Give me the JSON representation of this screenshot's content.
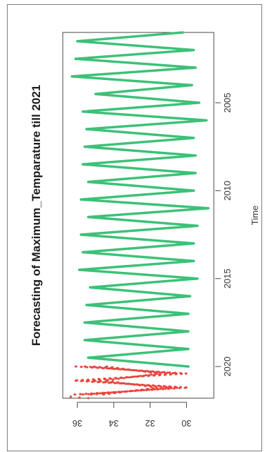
{
  "chart_data": {
    "type": "line",
    "title": "Forecasting of Maximum_Temparature till 2021",
    "xlabel": "Time",
    "ylabel": "",
    "x_ticks": [
      "2005",
      "2010",
      "2015",
      "2020"
    ],
    "y_ticks": [
      "30",
      "32",
      "34",
      "36"
    ],
    "xlim": [
      2001,
      2021.8
    ],
    "ylim": [
      28.5,
      36.8
    ],
    "colors": {
      "actual": "#3cc177",
      "forecast": "#e8453c"
    },
    "series": [
      {
        "style": "solid",
        "x": [
          2001.0,
          2001.5,
          2002.0,
          2002.5,
          2003.0,
          2003.5,
          2004.0,
          2004.5,
          2005.0,
          2005.5,
          2006.0,
          2006.5,
          2007.0,
          2007.5,
          2008.0,
          2008.5,
          2009.0,
          2009.5,
          2010.0,
          2010.5,
          2011.0,
          2011.5,
          2012.0,
          2012.5,
          2013.0,
          2013.5,
          2014.0,
          2014.5,
          2015.0,
          2015.5,
          2016.0,
          2016.5,
          2017.0,
          2017.5,
          2018.0,
          2018.5,
          2019.0,
          2019.5,
          2020.0
        ],
        "values": [
          30.2,
          36.0,
          29.6,
          36.1,
          29.5,
          36.3,
          29.7,
          35.0,
          29.3,
          35.7,
          28.9,
          35.5,
          29.6,
          35.6,
          29.5,
          35.7,
          29.5,
          35.4,
          29.6,
          35.8,
          28.8,
          35.4,
          29.4,
          35.8,
          29.6,
          35.7,
          29.6,
          35.9,
          29.4,
          35.3,
          29.8,
          35.5,
          29.9,
          35.6,
          29.9,
          35.6,
          29.9,
          35.4,
          29.9
        ]
      },
      {
        "style": "dotted",
        "x": [
          2020.0,
          2020.4,
          2020.8,
          2021.2,
          2021.6,
          2021.8
        ],
        "values": [
          35.6,
          30.5,
          35.7,
          30.4,
          35.8,
          35.9
        ]
      },
      {
        "style": "dotted",
        "x": [
          2020.0,
          2020.4,
          2020.8,
          2021.2,
          2021.6,
          2021.8
        ],
        "values": [
          34.4,
          31.5,
          34.5,
          31.6,
          34.6,
          34.7
        ]
      },
      {
        "style": "dotted",
        "x": [
          2020.0,
          2020.4,
          2020.8,
          2021.2,
          2021.6,
          2021.8
        ],
        "values": [
          35.1,
          31.0,
          35.2,
          30.9,
          35.3,
          35.4
        ]
      },
      {
        "style": "dotted",
        "x": [
          2020.0,
          2020.4,
          2020.8,
          2021.2,
          2021.6,
          2021.8
        ],
        "values": [
          36.1,
          30.0,
          36.2,
          29.9,
          36.3,
          36.4
        ]
      }
    ]
  }
}
